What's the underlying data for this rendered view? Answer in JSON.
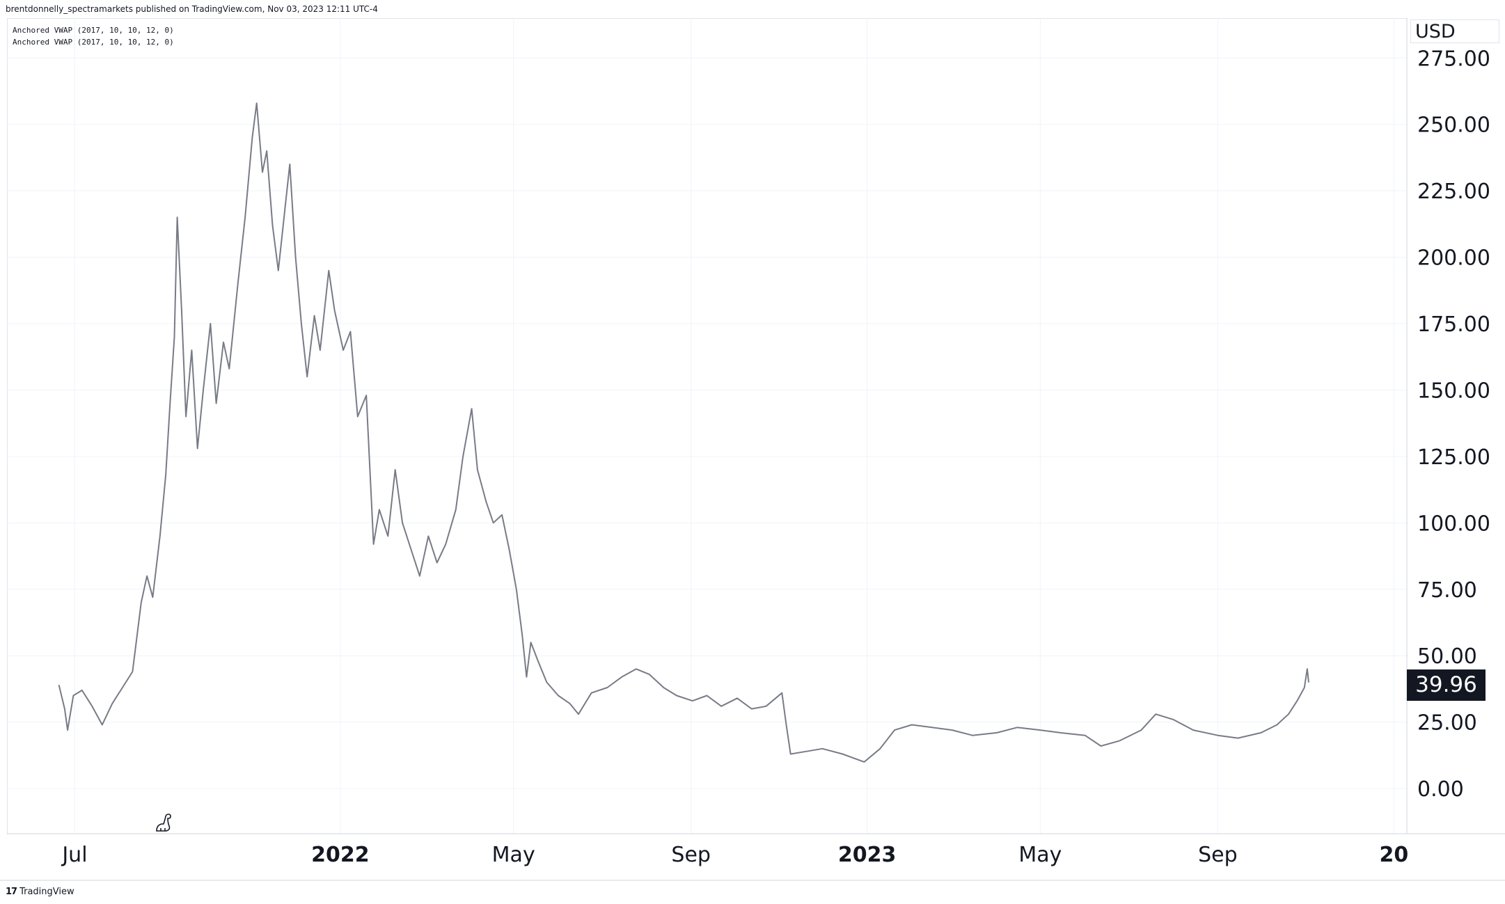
{
  "header": {
    "published_line": "brentdonnelly_spectramarkets published on TradingView.com, Nov 03, 2023 12:11 UTC-4"
  },
  "legend": [
    "Anchored VWAP (2017, 10, 10, 12, 0)",
    "Anchored VWAP (2017, 10, 10, 12, 0)"
  ],
  "price_axis": {
    "currency": "USD",
    "last_price": "39.96"
  },
  "footer": {
    "brand": "TradingView",
    "logo_glyph": "17"
  },
  "colors": {
    "line": "#787b86",
    "grid": "#f0f3fa",
    "badge_bg": "#131722",
    "text": "#131722"
  },
  "chart_data": {
    "type": "line",
    "title": "",
    "xlabel": "",
    "ylabel": "",
    "y_unit": "USD",
    "ylim": [
      -17,
      290
    ],
    "y_ticks": [
      "0.00",
      "25.00",
      "50.00",
      "75.00",
      "100.00",
      "125.00",
      "150.00",
      "175.00",
      "200.00",
      "225.00",
      "250.00",
      "275.00"
    ],
    "y_tick_values": [
      0,
      25,
      50,
      75,
      100,
      125,
      150,
      175,
      200,
      225,
      250,
      275
    ],
    "x_ticks": [
      {
        "label": "Jul",
        "date": "2021-07-01",
        "bold": false
      },
      {
        "label": "2022",
        "date": "2022-01-01",
        "bold": true
      },
      {
        "label": "May",
        "date": "2022-05-01",
        "bold": false
      },
      {
        "label": "Sep",
        "date": "2022-09-01",
        "bold": false
      },
      {
        "label": "2023",
        "date": "2023-01-01",
        "bold": true
      },
      {
        "label": "May",
        "date": "2023-05-01",
        "bold": false
      },
      {
        "label": "Sep",
        "date": "2023-09-01",
        "bold": false
      },
      {
        "label": "20",
        "date": "2024-01-01",
        "bold": true
      }
    ],
    "xlim": [
      "2021-05-15",
      "2024-01-10"
    ],
    "grid": true,
    "series": [
      {
        "values": [
          [
            "2021-06-20",
            39
          ],
          [
            "2021-06-24",
            30
          ],
          [
            "2021-06-26",
            22
          ],
          [
            "2021-06-30",
            35
          ],
          [
            "2021-07-06",
            37
          ],
          [
            "2021-07-13",
            31
          ],
          [
            "2021-07-20",
            24
          ],
          [
            "2021-07-27",
            32
          ],
          [
            "2021-08-03",
            38
          ],
          [
            "2021-08-10",
            44
          ],
          [
            "2021-08-16",
            70
          ],
          [
            "2021-08-20",
            80
          ],
          [
            "2021-08-24",
            72
          ],
          [
            "2021-08-29",
            95
          ],
          [
            "2021-09-02",
            118
          ],
          [
            "2021-09-05",
            145
          ],
          [
            "2021-09-08",
            170
          ],
          [
            "2021-09-10",
            215
          ],
          [
            "2021-09-13",
            180
          ],
          [
            "2021-09-16",
            140
          ],
          [
            "2021-09-20",
            165
          ],
          [
            "2021-09-24",
            128
          ],
          [
            "2021-09-28",
            150
          ],
          [
            "2021-10-03",
            175
          ],
          [
            "2021-10-07",
            145
          ],
          [
            "2021-10-12",
            168
          ],
          [
            "2021-10-16",
            158
          ],
          [
            "2021-10-22",
            190
          ],
          [
            "2021-10-27",
            215
          ],
          [
            "2021-11-01",
            245
          ],
          [
            "2021-11-04",
            258
          ],
          [
            "2021-11-08",
            232
          ],
          [
            "2021-11-11",
            240
          ],
          [
            "2021-11-15",
            212
          ],
          [
            "2021-11-19",
            195
          ],
          [
            "2021-11-24",
            220
          ],
          [
            "2021-11-27",
            235
          ],
          [
            "2021-12-01",
            200
          ],
          [
            "2021-12-05",
            175
          ],
          [
            "2021-12-09",
            155
          ],
          [
            "2021-12-14",
            178
          ],
          [
            "2021-12-18",
            165
          ],
          [
            "2021-12-24",
            195
          ],
          [
            "2021-12-28",
            180
          ],
          [
            "2022-01-03",
            165
          ],
          [
            "2022-01-08",
            172
          ],
          [
            "2022-01-13",
            140
          ],
          [
            "2022-01-19",
            148
          ],
          [
            "2022-01-24",
            92
          ],
          [
            "2022-01-28",
            105
          ],
          [
            "2022-02-03",
            95
          ],
          [
            "2022-02-08",
            120
          ],
          [
            "2022-02-13",
            100
          ],
          [
            "2022-02-19",
            90
          ],
          [
            "2022-02-25",
            80
          ],
          [
            "2022-03-03",
            95
          ],
          [
            "2022-03-09",
            85
          ],
          [
            "2022-03-15",
            92
          ],
          [
            "2022-03-22",
            105
          ],
          [
            "2022-03-27",
            125
          ],
          [
            "2022-04-02",
            143
          ],
          [
            "2022-04-06",
            120
          ],
          [
            "2022-04-12",
            108
          ],
          [
            "2022-04-17",
            100
          ],
          [
            "2022-04-23",
            103
          ],
          [
            "2022-04-28",
            90
          ],
          [
            "2022-05-03",
            75
          ],
          [
            "2022-05-07",
            58
          ],
          [
            "2022-05-10",
            42
          ],
          [
            "2022-05-13",
            55
          ],
          [
            "2022-05-18",
            48
          ],
          [
            "2022-05-24",
            40
          ],
          [
            "2022-06-01",
            35
          ],
          [
            "2022-06-09",
            32
          ],
          [
            "2022-06-15",
            28
          ],
          [
            "2022-06-24",
            36
          ],
          [
            "2022-07-05",
            38
          ],
          [
            "2022-07-15",
            42
          ],
          [
            "2022-07-25",
            45
          ],
          [
            "2022-08-03",
            43
          ],
          [
            "2022-08-13",
            38
          ],
          [
            "2022-08-22",
            35
          ],
          [
            "2022-09-02",
            33
          ],
          [
            "2022-09-12",
            35
          ],
          [
            "2022-09-22",
            31
          ],
          [
            "2022-10-03",
            34
          ],
          [
            "2022-10-13",
            30
          ],
          [
            "2022-10-23",
            31
          ],
          [
            "2022-11-03",
            36
          ],
          [
            "2022-11-06",
            24
          ],
          [
            "2022-11-09",
            13
          ],
          [
            "2022-11-20",
            14
          ],
          [
            "2022-12-01",
            15
          ],
          [
            "2022-12-15",
            13
          ],
          [
            "2022-12-30",
            10
          ],
          [
            "2023-01-10",
            15
          ],
          [
            "2023-01-20",
            22
          ],
          [
            "2023-02-01",
            24
          ],
          [
            "2023-02-15",
            23
          ],
          [
            "2023-03-01",
            22
          ],
          [
            "2023-03-15",
            20
          ],
          [
            "2023-04-01",
            21
          ],
          [
            "2023-04-15",
            23
          ],
          [
            "2023-05-01",
            22
          ],
          [
            "2023-05-15",
            21
          ],
          [
            "2023-06-01",
            20
          ],
          [
            "2023-06-12",
            16
          ],
          [
            "2023-06-25",
            18
          ],
          [
            "2023-07-10",
            22
          ],
          [
            "2023-07-20",
            28
          ],
          [
            "2023-08-01",
            26
          ],
          [
            "2023-08-15",
            22
          ],
          [
            "2023-09-01",
            20
          ],
          [
            "2023-09-15",
            19
          ],
          [
            "2023-10-01",
            21
          ],
          [
            "2023-10-12",
            24
          ],
          [
            "2023-10-20",
            28
          ],
          [
            "2023-10-26",
            33
          ],
          [
            "2023-10-31",
            38
          ],
          [
            "2023-11-02",
            45
          ],
          [
            "2023-11-03",
            39.96
          ]
        ]
      }
    ]
  }
}
